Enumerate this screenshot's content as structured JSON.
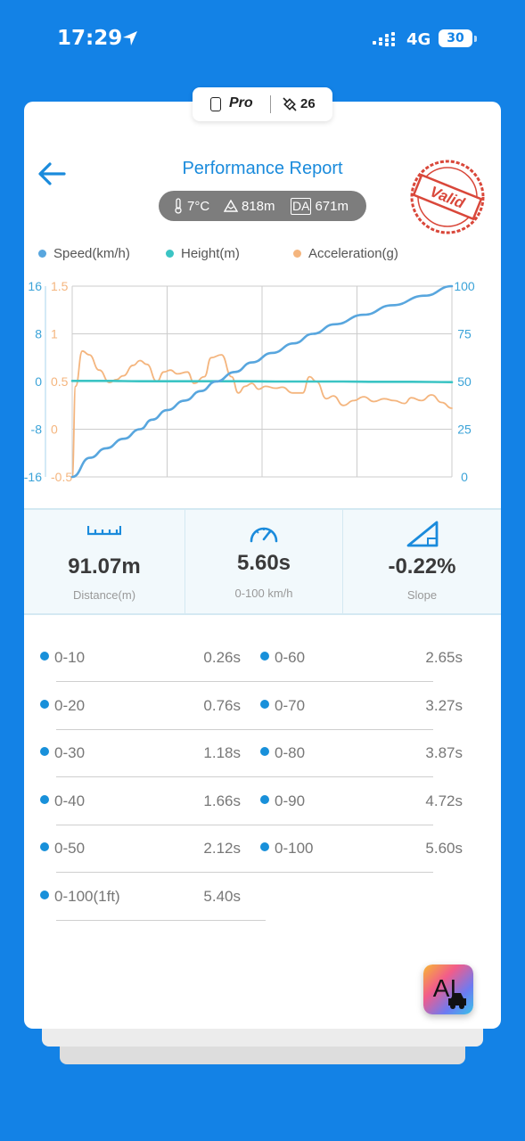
{
  "status_bar": {
    "time": "17:29",
    "network": "4G",
    "battery": "30"
  },
  "device": {
    "model": "Pro",
    "satellites": "26"
  },
  "header": {
    "title": "Performance Report"
  },
  "conditions": {
    "temperature": "7°C",
    "altitude": "818m",
    "da_badge": "DA",
    "density_altitude": "671m"
  },
  "stamp": {
    "text": "Valid"
  },
  "legend": [
    {
      "label": "Speed(km/h)",
      "color": "#58A6DE"
    },
    {
      "label": "Height(m)",
      "color": "#3BC4C4"
    },
    {
      "label": "Acceleration(g)",
      "color": "#F4B57E"
    }
  ],
  "chart_data": {
    "type": "line",
    "height_ticks": [
      "16",
      "8",
      "0",
      "-8",
      "-16"
    ],
    "acceleration_ticks": [
      "1.5",
      "1",
      "0.5",
      "0",
      "-0.5"
    ],
    "speed_ticks": [
      "100",
      "75",
      "50",
      "25",
      "0"
    ],
    "ylim_speed": [
      0,
      100
    ],
    "ylim_height": [
      -16,
      16
    ],
    "ylim_acceleration": [
      -0.5,
      1.5
    ],
    "grid": true,
    "series": [
      {
        "name": "Speed(km/h)",
        "axis": "right",
        "x": [
          0,
          0.26,
          0.5,
          0.76,
          1.0,
          1.18,
          1.4,
          1.66,
          1.9,
          2.12,
          2.4,
          2.65,
          2.95,
          3.27,
          3.55,
          3.87,
          4.3,
          4.72,
          5.2,
          5.6
        ],
        "values": [
          0,
          10,
          15,
          20,
          25,
          30,
          35,
          40,
          45,
          50,
          55,
          60,
          65,
          70,
          75,
          80,
          85,
          90,
          95,
          100
        ]
      },
      {
        "name": "Height(m)",
        "axis": "left",
        "x": [
          0,
          0.5,
          1,
          1.5,
          2,
          2.5,
          3,
          3.5,
          4,
          4.5,
          5,
          5.6
        ],
        "values": [
          0.1,
          0.1,
          0.05,
          0.05,
          0.05,
          0.05,
          0,
          0,
          0,
          -0.05,
          -0.05,
          -0.1
        ]
      },
      {
        "name": "Acceleration(g)",
        "axis": "left2",
        "x": [
          0,
          0.05,
          0.15,
          0.25,
          0.4,
          0.55,
          0.65,
          0.75,
          0.9,
          1.0,
          1.1,
          1.25,
          1.35,
          1.45,
          1.55,
          1.7,
          1.8,
          1.95,
          2.05,
          2.2,
          2.35,
          2.45,
          2.55,
          2.65,
          2.75,
          2.85,
          3.0,
          3.1,
          3.25,
          3.4,
          3.5,
          3.6,
          3.75,
          3.85,
          4.0,
          4.15,
          4.3,
          4.45,
          4.6,
          4.75,
          4.9,
          5.0,
          5.15,
          5.3,
          5.45,
          5.6
        ],
        "values": [
          -0.5,
          0.45,
          0.82,
          0.78,
          0.62,
          0.49,
          0.52,
          0.56,
          0.67,
          0.72,
          0.68,
          0.5,
          0.6,
          0.62,
          0.58,
          0.6,
          0.48,
          0.55,
          0.75,
          0.78,
          0.55,
          0.38,
          0.45,
          0.48,
          0.42,
          0.45,
          0.43,
          0.44,
          0.38,
          0.38,
          0.55,
          0.5,
          0.32,
          0.35,
          0.25,
          0.3,
          0.34,
          0.29,
          0.32,
          0.3,
          0.27,
          0.33,
          0.3,
          0.36,
          0.28,
          0.22
        ]
      }
    ]
  },
  "stats": [
    {
      "value": "91.07m",
      "label": "Distance(m)",
      "icon": "ruler-icon"
    },
    {
      "value": "5.60s",
      "label": "0-100 km/h",
      "icon": "speedometer-icon"
    },
    {
      "value": "-0.22%",
      "label": "Slope",
      "icon": "slope-icon"
    }
  ],
  "splits_left": [
    {
      "label": "0-10",
      "time": "0.26s"
    },
    {
      "label": "0-20",
      "time": "0.76s"
    },
    {
      "label": "0-30",
      "time": "1.18s"
    },
    {
      "label": "0-40",
      "time": "1.66s"
    },
    {
      "label": "0-50",
      "time": "2.12s"
    },
    {
      "label": "0-100(1ft)",
      "time": "5.40s"
    }
  ],
  "splits_right": [
    {
      "label": "0-60",
      "time": "2.65s"
    },
    {
      "label": "0-70",
      "time": "3.27s"
    },
    {
      "label": "0-80",
      "time": "3.87s"
    },
    {
      "label": "0-90",
      "time": "4.72s"
    },
    {
      "label": "0-100",
      "time": "5.60s"
    }
  ],
  "ai_button": {
    "label": "AI"
  }
}
